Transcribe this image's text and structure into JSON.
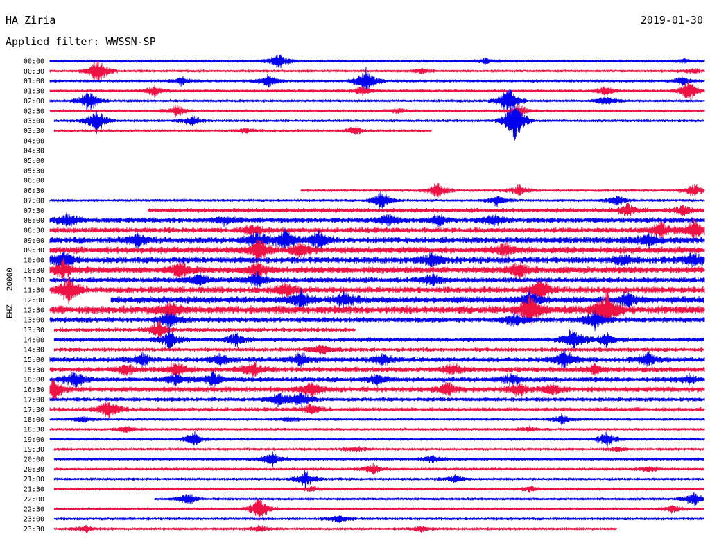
{
  "header": {
    "station": "HA Ziria",
    "date": "2019-01-30",
    "filter_label": "Applied filter: WWSSN-SP"
  },
  "chart_data": {
    "type": "line",
    "title": "HA Ziria",
    "ylabel": "EHZ - 20000",
    "x_range_minutes": [
      0,
      30
    ],
    "colors": {
      "odd": "#0000ee",
      "even": "#ee1144"
    },
    "rows": [
      {
        "label": "00:00",
        "start": 0,
        "end": 30,
        "amp": 2,
        "events": [
          [
            10.5,
            12
          ],
          [
            20,
            4
          ],
          [
            29,
            3
          ]
        ]
      },
      {
        "label": "00:30",
        "start": 0,
        "end": 30,
        "amp": 2,
        "events": [
          [
            2.2,
            20
          ],
          [
            17,
            4
          ],
          [
            29.5,
            4
          ]
        ]
      },
      {
        "label": "01:00",
        "start": 0,
        "end": 30,
        "amp": 2,
        "events": [
          [
            6,
            7
          ],
          [
            10,
            10
          ],
          [
            14.5,
            18
          ],
          [
            29,
            6
          ]
        ]
      },
      {
        "label": "01:30",
        "start": 0,
        "end": 30,
        "amp": 2,
        "events": [
          [
            4.8,
            8
          ],
          [
            14.3,
            6
          ],
          [
            25.5,
            7
          ],
          [
            29.3,
            16
          ]
        ]
      },
      {
        "label": "02:00",
        "start": 0,
        "end": 30,
        "amp": 2,
        "events": [
          [
            1.8,
            16
          ],
          [
            21,
            22
          ],
          [
            25.5,
            8
          ]
        ]
      },
      {
        "label": "02:30",
        "start": 0,
        "end": 30,
        "amp": 2,
        "events": [
          [
            5.8,
            9
          ],
          [
            16,
            4
          ],
          [
            21.5,
            10
          ]
        ]
      },
      {
        "label": "03:00",
        "start": 0.2,
        "end": 30,
        "amp": 2,
        "events": [
          [
            6.5,
            8
          ],
          [
            2.1,
            20
          ],
          [
            21.3,
            35
          ]
        ]
      },
      {
        "label": "03:30",
        "start": 0.2,
        "end": 17.5,
        "amp": 2,
        "events": [
          [
            9,
            4
          ],
          [
            14,
            6
          ]
        ]
      },
      {
        "label": "04:00",
        "start": 0,
        "end": 0,
        "amp": 0,
        "events": []
      },
      {
        "label": "04:30",
        "start": 0,
        "end": 0,
        "amp": 0,
        "events": []
      },
      {
        "label": "05:00",
        "start": 0,
        "end": 0,
        "amp": 0,
        "events": []
      },
      {
        "label": "05:30",
        "start": 0,
        "end": 0,
        "amp": 0,
        "events": []
      },
      {
        "label": "06:00",
        "start": 0,
        "end": 0,
        "amp": 0,
        "events": []
      },
      {
        "label": "06:30",
        "start": 11.5,
        "end": 30,
        "amp": 2,
        "events": [
          [
            17.8,
            12
          ],
          [
            21.5,
            8
          ],
          [
            29.5,
            10
          ]
        ]
      },
      {
        "label": "07:00",
        "start": 0,
        "end": 30,
        "amp": 2,
        "events": [
          [
            15.2,
            14
          ],
          [
            20.5,
            8
          ],
          [
            26,
            8
          ]
        ]
      },
      {
        "label": "07:30",
        "start": 4.5,
        "end": 30,
        "amp": 3,
        "events": [
          [
            26.5,
            9
          ],
          [
            29,
            8
          ]
        ]
      },
      {
        "label": "08:00",
        "start": 0,
        "end": 30,
        "amp": 4,
        "events": [
          [
            0.8,
            10
          ],
          [
            8,
            6
          ],
          [
            15.5,
            8
          ],
          [
            17.8,
            8
          ],
          [
            20.3,
            8
          ]
        ]
      },
      {
        "label": "08:30",
        "start": 0,
        "end": 30,
        "amp": 4,
        "events": [
          [
            9.3,
            8
          ],
          [
            28,
            12
          ],
          [
            29.5,
            14
          ]
        ]
      },
      {
        "label": "09:00",
        "start": 0,
        "end": 30,
        "amp": 5,
        "events": [
          [
            4,
            10
          ],
          [
            9.5,
            12
          ],
          [
            10.8,
            14
          ],
          [
            12.3,
            12
          ],
          [
            27.4,
            10
          ]
        ]
      },
      {
        "label": "09:30",
        "start": 0,
        "end": 30,
        "amp": 5,
        "events": [
          [
            9.6,
            18
          ],
          [
            11.5,
            10
          ],
          [
            20.8,
            10
          ]
        ]
      },
      {
        "label": "10:00",
        "start": 0,
        "end": 30,
        "amp": 5,
        "events": [
          [
            0.6,
            14
          ],
          [
            17.5,
            10
          ],
          [
            26.3,
            8
          ],
          [
            29.5,
            10
          ]
        ]
      },
      {
        "label": "10:30",
        "start": 0,
        "end": 30,
        "amp": 5,
        "events": [
          [
            0.6,
            14
          ],
          [
            6,
            12
          ],
          [
            9.5,
            12
          ],
          [
            21.5,
            12
          ]
        ]
      },
      {
        "label": "11:00",
        "start": 0,
        "end": 30,
        "amp": 4,
        "events": [
          [
            6.8,
            8
          ],
          [
            9.5,
            10
          ],
          [
            17.5,
            9
          ]
        ]
      },
      {
        "label": "11:30",
        "start": 0,
        "end": 30,
        "amp": 5,
        "events": [
          [
            0.9,
            20
          ],
          [
            10.8,
            10
          ],
          [
            22.5,
            16
          ]
        ]
      },
      {
        "label": "12:00",
        "start": 2.8,
        "end": 30,
        "amp": 5,
        "events": [
          [
            11.5,
            14
          ],
          [
            13.5,
            10
          ],
          [
            22,
            12
          ],
          [
            26.5,
            10
          ]
        ]
      },
      {
        "label": "12:30",
        "start": 0,
        "end": 30,
        "amp": 6,
        "events": [
          [
            5.5,
            12
          ],
          [
            22,
            22
          ],
          [
            25.5,
            26
          ]
        ]
      },
      {
        "label": "13:00",
        "start": 0,
        "end": 30,
        "amp": 4,
        "events": [
          [
            5.5,
            12
          ],
          [
            21.3,
            10
          ],
          [
            25,
            14
          ]
        ]
      },
      {
        "label": "13:30",
        "start": 0.2,
        "end": 14,
        "amp": 3,
        "events": [
          [
            5,
            12
          ]
        ]
      },
      {
        "label": "14:00",
        "start": 0.2,
        "end": 30,
        "amp": 3,
        "events": [
          [
            5.5,
            14
          ],
          [
            8.5,
            10
          ],
          [
            24,
            18
          ],
          [
            25.5,
            10
          ]
        ]
      },
      {
        "label": "14:30",
        "start": 0.2,
        "end": 30,
        "amp": 3,
        "events": [
          [
            12.5,
            8
          ]
        ]
      },
      {
        "label": "15:00",
        "start": 0,
        "end": 30,
        "amp": 4,
        "events": [
          [
            4.2,
            10
          ],
          [
            7.8,
            8
          ],
          [
            11.5,
            10
          ],
          [
            15.3,
            8
          ],
          [
            23.6,
            14
          ],
          [
            27.4,
            10
          ]
        ]
      },
      {
        "label": "15:30",
        "start": 0,
        "end": 30,
        "amp": 4,
        "events": [
          [
            3.5,
            8
          ],
          [
            5.8,
            10
          ],
          [
            9.3,
            12
          ],
          [
            18.5,
            8
          ],
          [
            25,
            8
          ]
        ]
      },
      {
        "label": "16:00",
        "start": 0,
        "end": 30,
        "amp": 4,
        "events": [
          [
            1.1,
            12
          ],
          [
            5.8,
            8
          ],
          [
            7.5,
            10
          ],
          [
            15,
            8
          ],
          [
            21.2,
            8
          ],
          [
            29.3,
            6
          ]
        ]
      },
      {
        "label": "16:30",
        "start": 0,
        "end": 30,
        "amp": 4,
        "events": [
          [
            0.2,
            14
          ],
          [
            12,
            12
          ],
          [
            18.2,
            10
          ],
          [
            21.5,
            10
          ],
          [
            23,
            8
          ]
        ]
      },
      {
        "label": "17:00",
        "start": 0,
        "end": 30,
        "amp": 3,
        "events": [
          [
            10.5,
            10
          ],
          [
            11.5,
            12
          ]
        ]
      },
      {
        "label": "17:30",
        "start": 0,
        "end": 30,
        "amp": 3,
        "events": [
          [
            2.7,
            16
          ],
          [
            12,
            8
          ]
        ]
      },
      {
        "label": "18:00",
        "start": 0,
        "end": 30,
        "amp": 2,
        "events": [
          [
            1.5,
            6
          ],
          [
            11,
            5
          ],
          [
            23.5,
            8
          ]
        ]
      },
      {
        "label": "18:30",
        "start": 0,
        "end": 30,
        "amp": 2,
        "events": [
          [
            3.5,
            5
          ],
          [
            22,
            4
          ]
        ]
      },
      {
        "label": "19:00",
        "start": 0,
        "end": 30,
        "amp": 2,
        "events": [
          [
            6.6,
            10
          ],
          [
            25.5,
            10
          ]
        ]
      },
      {
        "label": "19:30",
        "start": 0.2,
        "end": 30,
        "amp": 2,
        "events": [
          [
            14,
            4
          ],
          [
            26,
            3
          ]
        ]
      },
      {
        "label": "20:00",
        "start": 0.2,
        "end": 30,
        "amp": 2,
        "events": [
          [
            10.2,
            10
          ],
          [
            17.5,
            6
          ]
        ]
      },
      {
        "label": "20:30",
        "start": 0.2,
        "end": 30,
        "amp": 2,
        "events": [
          [
            14.8,
            8
          ],
          [
            27.5,
            4
          ]
        ]
      },
      {
        "label": "21:00",
        "start": 0.2,
        "end": 30,
        "amp": 2,
        "events": [
          [
            11.7,
            12
          ],
          [
            18.6,
            6
          ]
        ]
      },
      {
        "label": "21:30",
        "start": 0.2,
        "end": 30,
        "amp": 2,
        "events": [
          [
            12,
            4
          ],
          [
            22,
            4
          ]
        ]
      },
      {
        "label": "22:00",
        "start": 4.8,
        "end": 30,
        "amp": 2,
        "events": [
          [
            6.3,
            9
          ],
          [
            29.5,
            10
          ]
        ]
      },
      {
        "label": "22:30",
        "start": 0.2,
        "end": 30,
        "amp": 2,
        "events": [
          [
            9.6,
            18
          ],
          [
            28.5,
            6
          ]
        ]
      },
      {
        "label": "23:00",
        "start": 0.2,
        "end": 30,
        "amp": 2,
        "events": [
          [
            13.2,
            6
          ]
        ]
      },
      {
        "label": "23:30",
        "start": 0.2,
        "end": 26,
        "amp": 2,
        "events": [
          [
            1.6,
            5
          ],
          [
            9.6,
            5
          ],
          [
            17,
            4
          ]
        ]
      }
    ]
  }
}
